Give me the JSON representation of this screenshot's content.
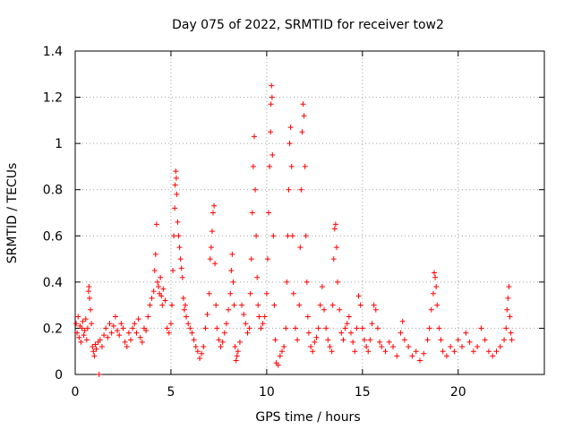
{
  "chart_data": {
    "type": "scatter",
    "title": "Day 075 of 2022, SRMTID for receiver tow2",
    "xlabel": "GPS time / hours",
    "ylabel": "SRMTID / TECUs",
    "xlim": [
      0,
      24.5
    ],
    "ylim": [
      0,
      1.4
    ],
    "xticks": [
      0,
      5,
      10,
      15,
      20
    ],
    "yticks": [
      0,
      0.2,
      0.4,
      0.6,
      0.8,
      1,
      1.2,
      1.4
    ],
    "xtick_labels": [
      "0",
      "5",
      "10",
      "15",
      "20"
    ],
    "ytick_labels": [
      "0",
      "0.2",
      "0.4",
      "0.6",
      "0.8",
      "1",
      "1.2",
      "1.4"
    ],
    "grid": true,
    "marker": "plus",
    "color": "#ff0000",
    "series": [
      {
        "name": "tow2",
        "points": [
          [
            0.05,
            0.22
          ],
          [
            0.1,
            0.18
          ],
          [
            0.15,
            0.25
          ],
          [
            0.2,
            0.16
          ],
          [
            0.25,
            0.21
          ],
          [
            0.3,
            0.14
          ],
          [
            0.35,
            0.2
          ],
          [
            0.4,
            0.23
          ],
          [
            0.45,
            0.17
          ],
          [
            0.5,
            0.19
          ],
          [
            0.55,
            0.24
          ],
          [
            0.6,
            0.15
          ],
          [
            0.65,
            0.2
          ],
          [
            0.7,
            0.36
          ],
          [
            0.72,
            0.38
          ],
          [
            0.75,
            0.33
          ],
          [
            0.8,
            0.28
          ],
          [
            0.85,
            0.22
          ],
          [
            0.9,
            0.12
          ],
          [
            0.95,
            0.1
          ],
          [
            1.0,
            0.08
          ],
          [
            1.05,
            0.13
          ],
          [
            1.1,
            0.11
          ],
          [
            1.2,
            0.14
          ],
          [
            1.25,
            0.0
          ],
          [
            1.3,
            0.15
          ],
          [
            1.4,
            0.12
          ],
          [
            1.5,
            0.17
          ],
          [
            1.6,
            0.2
          ],
          [
            1.7,
            0.16
          ],
          [
            1.8,
            0.22
          ],
          [
            1.9,
            0.18
          ],
          [
            2.0,
            0.21
          ],
          [
            2.1,
            0.25
          ],
          [
            2.2,
            0.19
          ],
          [
            2.3,
            0.17
          ],
          [
            2.4,
            0.22
          ],
          [
            2.5,
            0.2
          ],
          [
            2.6,
            0.14
          ],
          [
            2.7,
            0.12
          ],
          [
            2.8,
            0.18
          ],
          [
            2.9,
            0.15
          ],
          [
            3.0,
            0.2
          ],
          [
            3.1,
            0.22
          ],
          [
            3.2,
            0.18
          ],
          [
            3.3,
            0.24
          ],
          [
            3.4,
            0.16
          ],
          [
            3.5,
            0.14
          ],
          [
            3.6,
            0.2
          ],
          [
            3.7,
            0.19
          ],
          [
            3.8,
            0.25
          ],
          [
            3.9,
            0.3
          ],
          [
            4.0,
            0.33
          ],
          [
            4.1,
            0.36
          ],
          [
            4.15,
            0.45
          ],
          [
            4.2,
            0.52
          ],
          [
            4.25,
            0.65
          ],
          [
            4.3,
            0.4
          ],
          [
            4.35,
            0.38
          ],
          [
            4.4,
            0.35
          ],
          [
            4.45,
            0.42
          ],
          [
            4.5,
            0.34
          ],
          [
            4.55,
            0.3
          ],
          [
            4.6,
            0.37
          ],
          [
            4.7,
            0.32
          ],
          [
            4.8,
            0.2
          ],
          [
            4.9,
            0.18
          ],
          [
            5.0,
            0.22
          ],
          [
            5.05,
            0.3
          ],
          [
            5.1,
            0.45
          ],
          [
            5.15,
            0.6
          ],
          [
            5.2,
            0.72
          ],
          [
            5.22,
            0.82
          ],
          [
            5.25,
            0.88
          ],
          [
            5.28,
            0.85
          ],
          [
            5.3,
            0.78
          ],
          [
            5.35,
            0.66
          ],
          [
            5.4,
            0.6
          ],
          [
            5.45,
            0.55
          ],
          [
            5.5,
            0.5
          ],
          [
            5.55,
            0.46
          ],
          [
            5.6,
            0.42
          ],
          [
            5.65,
            0.33
          ],
          [
            5.7,
            0.28
          ],
          [
            5.75,
            0.3
          ],
          [
            5.8,
            0.25
          ],
          [
            5.9,
            0.22
          ],
          [
            6.0,
            0.2
          ],
          [
            6.1,
            0.18
          ],
          [
            6.2,
            0.15
          ],
          [
            6.3,
            0.12
          ],
          [
            6.4,
            0.1
          ],
          [
            6.5,
            0.07
          ],
          [
            6.6,
            0.09
          ],
          [
            6.7,
            0.12
          ],
          [
            6.8,
            0.2
          ],
          [
            6.9,
            0.26
          ],
          [
            7.0,
            0.35
          ],
          [
            7.05,
            0.5
          ],
          [
            7.1,
            0.55
          ],
          [
            7.15,
            0.62
          ],
          [
            7.2,
            0.7
          ],
          [
            7.25,
            0.73
          ],
          [
            7.3,
            0.48
          ],
          [
            7.35,
            0.3
          ],
          [
            7.4,
            0.2
          ],
          [
            7.5,
            0.15
          ],
          [
            7.6,
            0.12
          ],
          [
            7.7,
            0.14
          ],
          [
            7.8,
            0.18
          ],
          [
            7.9,
            0.22
          ],
          [
            8.0,
            0.28
          ],
          [
            8.1,
            0.35
          ],
          [
            8.15,
            0.45
          ],
          [
            8.2,
            0.52
          ],
          [
            8.25,
            0.4
          ],
          [
            8.3,
            0.3
          ],
          [
            8.35,
            0.12
          ],
          [
            8.4,
            0.06
          ],
          [
            8.45,
            0.08
          ],
          [
            8.5,
            0.1
          ],
          [
            8.6,
            0.14
          ],
          [
            8.7,
            0.3
          ],
          [
            8.8,
            0.26
          ],
          [
            8.9,
            0.22
          ],
          [
            9.0,
            0.18
          ],
          [
            9.1,
            0.2
          ],
          [
            9.15,
            0.35
          ],
          [
            9.2,
            0.5
          ],
          [
            9.25,
            0.7
          ],
          [
            9.3,
            0.9
          ],
          [
            9.35,
            1.03
          ],
          [
            9.4,
            0.8
          ],
          [
            9.45,
            0.6
          ],
          [
            9.5,
            0.42
          ],
          [
            9.55,
            0.3
          ],
          [
            9.6,
            0.25
          ],
          [
            9.7,
            0.2
          ],
          [
            9.8,
            0.22
          ],
          [
            9.9,
            0.25
          ],
          [
            10.0,
            0.35
          ],
          [
            10.05,
            0.5
          ],
          [
            10.1,
            0.7
          ],
          [
            10.15,
            0.9
          ],
          [
            10.2,
            1.05
          ],
          [
            10.22,
            1.17
          ],
          [
            10.25,
            1.25
          ],
          [
            10.28,
            1.2
          ],
          [
            10.3,
            0.95
          ],
          [
            10.35,
            0.6
          ],
          [
            10.4,
            0.3
          ],
          [
            10.45,
            0.15
          ],
          [
            10.5,
            0.05
          ],
          [
            10.6,
            0.04
          ],
          [
            10.7,
            0.08
          ],
          [
            10.8,
            0.1
          ],
          [
            10.9,
            0.12
          ],
          [
            11.0,
            0.2
          ],
          [
            11.05,
            0.4
          ],
          [
            11.1,
            0.6
          ],
          [
            11.15,
            0.8
          ],
          [
            11.2,
            1.0
          ],
          [
            11.25,
            1.07
          ],
          [
            11.3,
            0.9
          ],
          [
            11.35,
            0.6
          ],
          [
            11.4,
            0.35
          ],
          [
            11.5,
            0.2
          ],
          [
            11.6,
            0.15
          ],
          [
            11.7,
            0.3
          ],
          [
            11.75,
            0.55
          ],
          [
            11.8,
            0.8
          ],
          [
            11.85,
            1.05
          ],
          [
            11.9,
            1.17
          ],
          [
            11.95,
            1.12
          ],
          [
            12.0,
            0.9
          ],
          [
            12.05,
            0.6
          ],
          [
            12.1,
            0.4
          ],
          [
            12.15,
            0.25
          ],
          [
            12.2,
            0.18
          ],
          [
            12.3,
            0.12
          ],
          [
            12.4,
            0.1
          ],
          [
            12.5,
            0.14
          ],
          [
            12.6,
            0.16
          ],
          [
            12.7,
            0.2
          ],
          [
            12.8,
            0.3
          ],
          [
            12.9,
            0.38
          ],
          [
            13.0,
            0.28
          ],
          [
            13.1,
            0.2
          ],
          [
            13.2,
            0.15
          ],
          [
            13.3,
            0.12
          ],
          [
            13.4,
            0.1
          ],
          [
            13.45,
            0.3
          ],
          [
            13.5,
            0.5
          ],
          [
            13.55,
            0.63
          ],
          [
            13.6,
            0.65
          ],
          [
            13.65,
            0.55
          ],
          [
            13.7,
            0.4
          ],
          [
            13.8,
            0.28
          ],
          [
            13.9,
            0.18
          ],
          [
            14.0,
            0.15
          ],
          [
            14.1,
            0.2
          ],
          [
            14.2,
            0.22
          ],
          [
            14.3,
            0.25
          ],
          [
            14.4,
            0.18
          ],
          [
            14.5,
            0.14
          ],
          [
            14.6,
            0.1
          ],
          [
            14.7,
            0.2
          ],
          [
            14.8,
            0.34
          ],
          [
            14.9,
            0.3
          ],
          [
            15.0,
            0.2
          ],
          [
            15.1,
            0.15
          ],
          [
            15.2,
            0.12
          ],
          [
            15.3,
            0.1
          ],
          [
            15.4,
            0.15
          ],
          [
            15.5,
            0.22
          ],
          [
            15.6,
            0.3
          ],
          [
            15.7,
            0.28
          ],
          [
            15.8,
            0.2
          ],
          [
            15.9,
            0.14
          ],
          [
            16.0,
            0.12
          ],
          [
            16.2,
            0.1
          ],
          [
            16.4,
            0.14
          ],
          [
            16.6,
            0.12
          ],
          [
            16.8,
            0.08
          ],
          [
            17.0,
            0.18
          ],
          [
            17.1,
            0.23
          ],
          [
            17.2,
            0.15
          ],
          [
            17.4,
            0.12
          ],
          [
            17.6,
            0.08
          ],
          [
            17.8,
            0.1
          ],
          [
            18.0,
            0.06
          ],
          [
            18.2,
            0.09
          ],
          [
            18.4,
            0.15
          ],
          [
            18.5,
            0.2
          ],
          [
            18.6,
            0.28
          ],
          [
            18.7,
            0.35
          ],
          [
            18.75,
            0.44
          ],
          [
            18.8,
            0.42
          ],
          [
            18.85,
            0.38
          ],
          [
            18.9,
            0.3
          ],
          [
            19.0,
            0.2
          ],
          [
            19.1,
            0.15
          ],
          [
            19.2,
            0.1
          ],
          [
            19.4,
            0.08
          ],
          [
            19.6,
            0.12
          ],
          [
            19.8,
            0.1
          ],
          [
            20.0,
            0.15
          ],
          [
            20.2,
            0.12
          ],
          [
            20.4,
            0.18
          ],
          [
            20.6,
            0.14
          ],
          [
            20.8,
            0.1
          ],
          [
            21.0,
            0.12
          ],
          [
            21.2,
            0.2
          ],
          [
            21.4,
            0.15
          ],
          [
            21.6,
            0.1
          ],
          [
            21.8,
            0.08
          ],
          [
            22.0,
            0.1
          ],
          [
            22.2,
            0.12
          ],
          [
            22.4,
            0.15
          ],
          [
            22.5,
            0.2
          ],
          [
            22.55,
            0.28
          ],
          [
            22.6,
            0.33
          ],
          [
            22.65,
            0.38
          ],
          [
            22.7,
            0.25
          ],
          [
            22.75,
            0.18
          ],
          [
            22.8,
            0.15
          ]
        ]
      }
    ]
  }
}
